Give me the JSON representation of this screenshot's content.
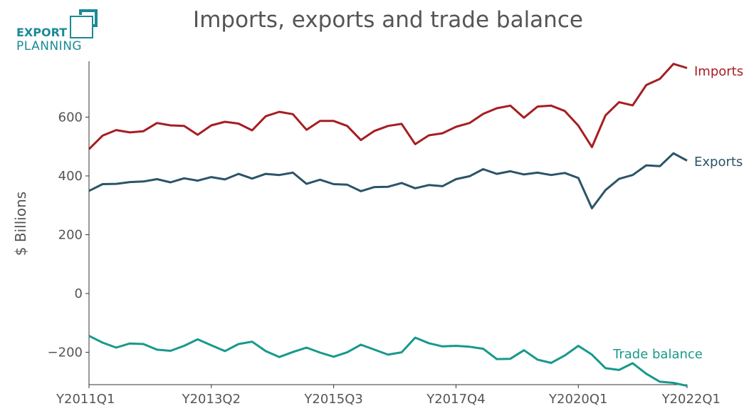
{
  "logo": {
    "line1": "EXPORT",
    "line2": "PLANNING",
    "color": "#1b8a96"
  },
  "chart_data": {
    "type": "line",
    "title": "Imports, exports and trade balance",
    "xlabel": "",
    "ylabel": "$ Billions",
    "ylim": [
      -310,
      790
    ],
    "yticks": [
      -200,
      0,
      200,
      400,
      600
    ],
    "ytick_labels": [
      "−200",
      "0",
      "200",
      "400",
      "600"
    ],
    "xticks": [
      "Y2011Q1",
      "Y2013Q2",
      "Y2015Q3",
      "Y2017Q4",
      "Y2020Q1",
      "Y2022Q1"
    ],
    "grid": false,
    "legend": "inline labels at line ends",
    "x": [
      "Y2011Q1",
      "Y2011Q2",
      "Y2011Q3",
      "Y2011Q4",
      "Y2012Q1",
      "Y2012Q2",
      "Y2012Q3",
      "Y2012Q4",
      "Y2013Q1",
      "Y2013Q2",
      "Y2013Q3",
      "Y2013Q4",
      "Y2014Q1",
      "Y2014Q2",
      "Y2014Q3",
      "Y2014Q4",
      "Y2015Q1",
      "Y2015Q2",
      "Y2015Q3",
      "Y2015Q4",
      "Y2016Q1",
      "Y2016Q2",
      "Y2016Q3",
      "Y2016Q4",
      "Y2017Q1",
      "Y2017Q2",
      "Y2017Q3",
      "Y2017Q4",
      "Y2018Q1",
      "Y2018Q2",
      "Y2018Q3",
      "Y2018Q4",
      "Y2019Q1",
      "Y2019Q2",
      "Y2019Q3",
      "Y2019Q4",
      "Y2020Q1",
      "Y2020Q2",
      "Y2020Q3",
      "Y2020Q4",
      "Y2021Q1",
      "Y2021Q2",
      "Y2021Q3",
      "Y2021Q4",
      "Y2022Q1"
    ],
    "series": [
      {
        "name": "Imports",
        "color": "#a61e22",
        "values": [
          491,
          537,
          556,
          548,
          552,
          580,
          572,
          570,
          540,
          572,
          584,
          578,
          555,
          603,
          618,
          610,
          557,
          587,
          587,
          570,
          522,
          553,
          570,
          577,
          508,
          538,
          545,
          567,
          580,
          611,
          630,
          639,
          598,
          636,
          639,
          621,
          571,
          498,
          606,
          651,
          640,
          709,
          730,
          781,
          767
        ]
      },
      {
        "name": "Exports",
        "color": "#2b5468",
        "values": [
          349,
          372,
          373,
          379,
          381,
          389,
          378,
          392,
          384,
          396,
          388,
          407,
          391,
          407,
          403,
          411,
          373,
          387,
          372,
          370,
          348,
          362,
          363,
          376,
          358,
          369,
          365,
          389,
          399,
          423,
          407,
          416,
          405,
          411,
          403,
          410,
          393,
          290,
          352,
          390,
          403,
          436,
          433,
          477,
          452
        ]
      },
      {
        "name": "Trade balance",
        "color": "#18998c",
        "values": [
          -144,
          -167,
          -184,
          -170,
          -172,
          -191,
          -195,
          -178,
          -156,
          -176,
          -196,
          -172,
          -164,
          -196,
          -216,
          -199,
          -184,
          -201,
          -215,
          -200,
          -174,
          -191,
          -208,
          -200,
          -150,
          -169,
          -180,
          -178,
          -181,
          -188,
          -223,
          -222,
          -193,
          -225,
          -236,
          -211,
          -178,
          -208,
          -254,
          -260,
          -237,
          -273,
          -300,
          -304,
          -314
        ]
      }
    ]
  }
}
